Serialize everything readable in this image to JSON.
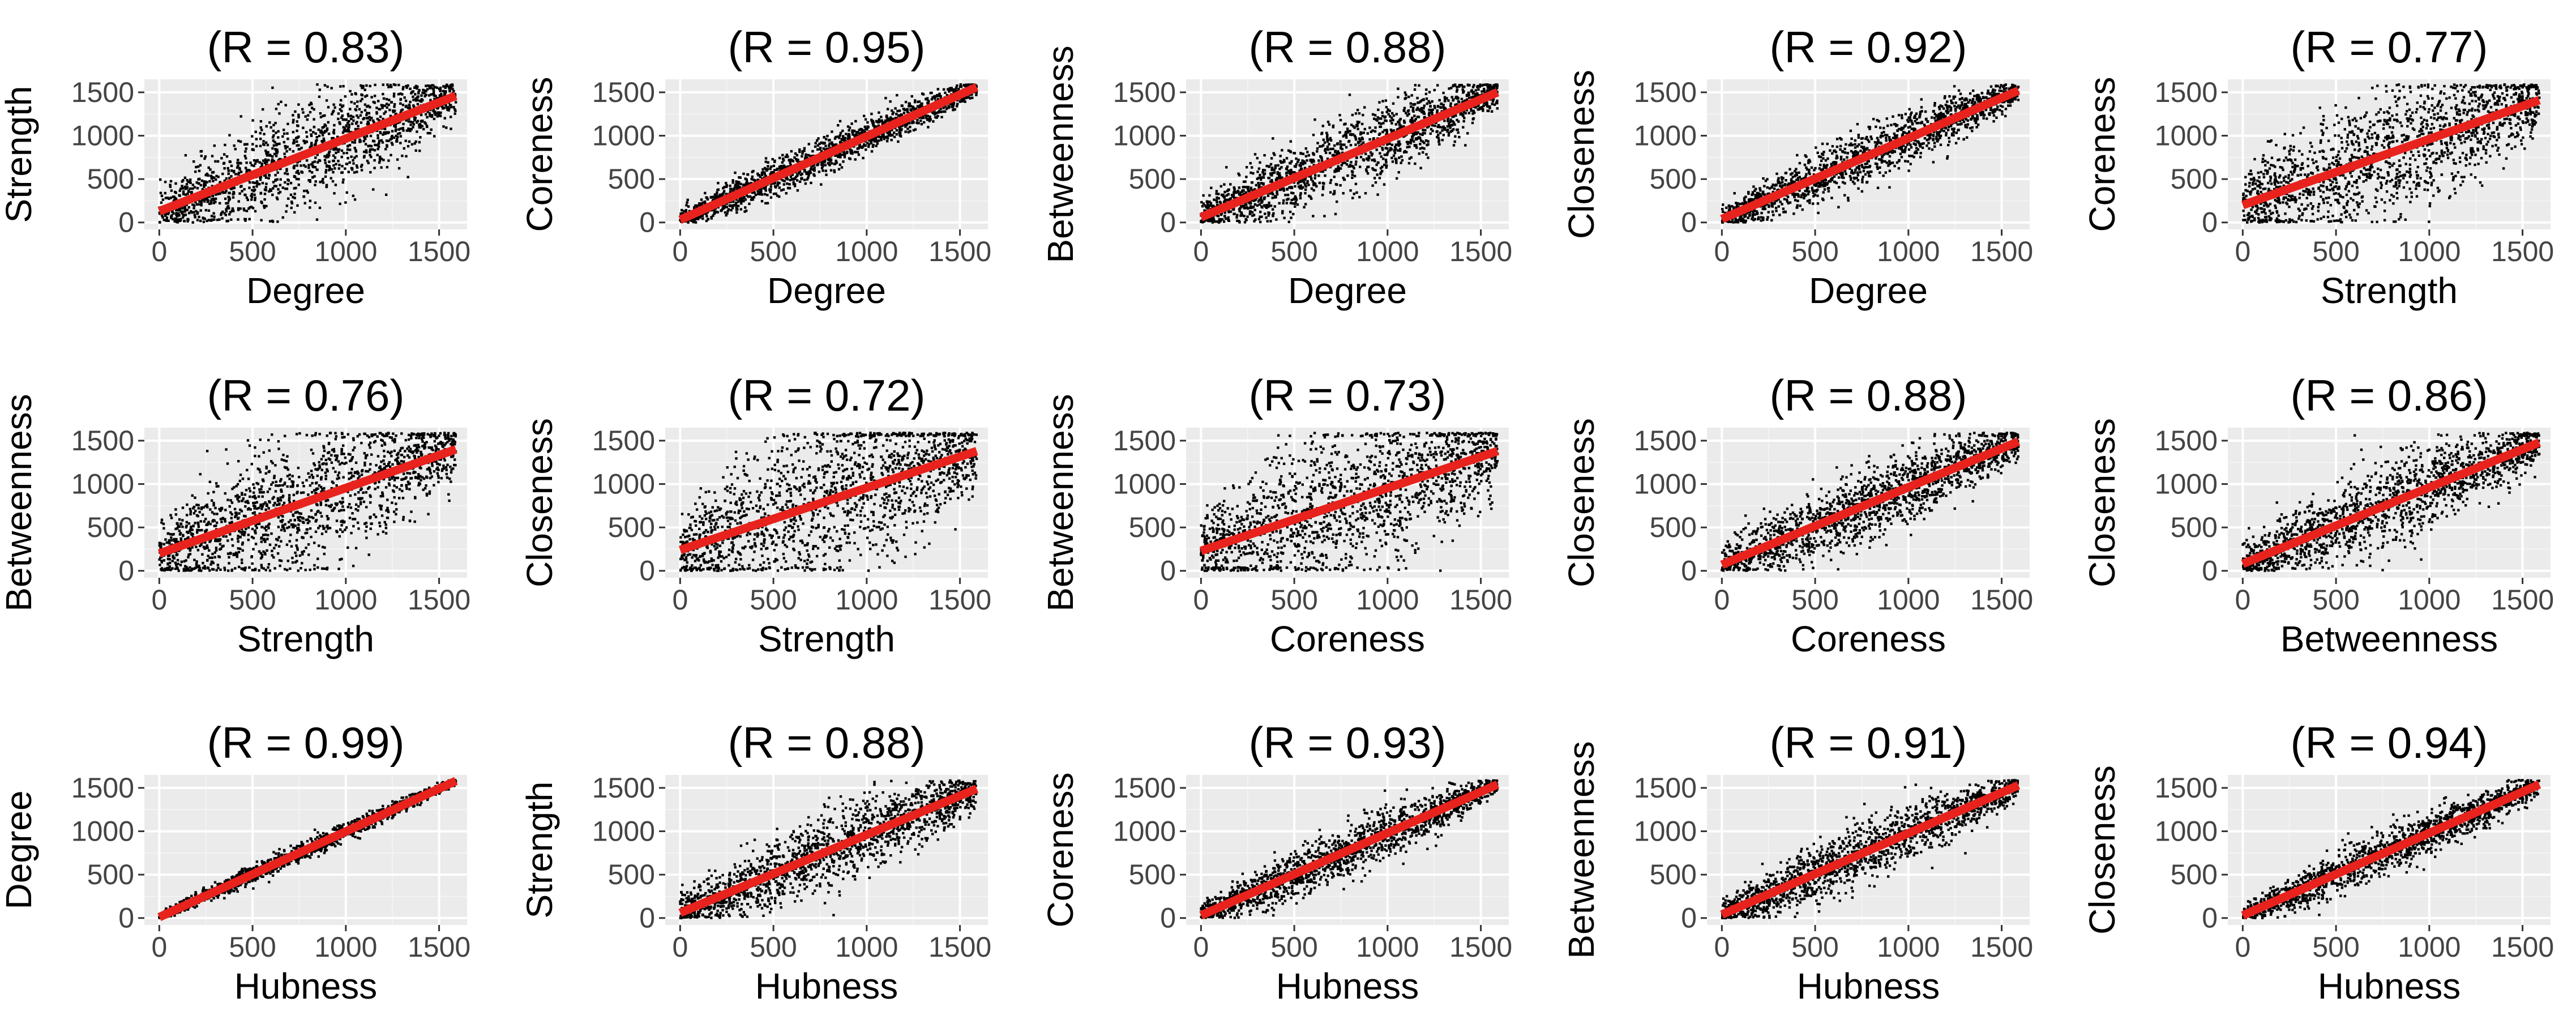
{
  "chart_data": [
    {
      "type": "scatter",
      "title": "(R = 0.83)",
      "xlabel": "Degree",
      "ylabel": "Strength",
      "r": 0.83,
      "xlim": [
        -80,
        1650
      ],
      "ylim": [
        -80,
        1650
      ],
      "xticks": [
        0,
        500,
        1000,
        1500
      ],
      "yticks": [
        0,
        500,
        1000,
        1500
      ],
      "fit": {
        "x": [
          0,
          1590
        ],
        "y": [
          130,
          1460
        ]
      }
    },
    {
      "type": "scatter",
      "title": "(R = 0.95)",
      "xlabel": "Degree",
      "ylabel": "Coreness",
      "r": 0.95,
      "xlim": [
        -80,
        1650
      ],
      "ylim": [
        -80,
        1650
      ],
      "xticks": [
        0,
        500,
        1000,
        1500
      ],
      "yticks": [
        0,
        500,
        1000,
        1500
      ],
      "fit": {
        "x": [
          0,
          1590
        ],
        "y": [
          30,
          1560
        ]
      }
    },
    {
      "type": "scatter",
      "title": "(R = 0.88)",
      "xlabel": "Degree",
      "ylabel": "Betweenness",
      "r": 0.88,
      "xlim": [
        -80,
        1650
      ],
      "ylim": [
        -80,
        1650
      ],
      "xticks": [
        0,
        500,
        1000,
        1500
      ],
      "yticks": [
        0,
        500,
        1000,
        1500
      ],
      "fit": {
        "x": [
          0,
          1590
        ],
        "y": [
          60,
          1500
        ]
      }
    },
    {
      "type": "scatter",
      "title": "(R = 0.92)",
      "xlabel": "Degree",
      "ylabel": "Closeness",
      "r": 0.92,
      "xlim": [
        -80,
        1650
      ],
      "ylim": [
        -80,
        1650
      ],
      "xticks": [
        0,
        500,
        1000,
        1500
      ],
      "yticks": [
        0,
        500,
        1000,
        1500
      ],
      "fit": {
        "x": [
          0,
          1590
        ],
        "y": [
          40,
          1520
        ]
      }
    },
    {
      "type": "scatter",
      "title": "(R = 0.77)",
      "xlabel": "Strength",
      "ylabel": "Coreness",
      "r": 0.77,
      "xlim": [
        -80,
        1650
      ],
      "ylim": [
        -80,
        1650
      ],
      "xticks": [
        0,
        500,
        1000,
        1500
      ],
      "yticks": [
        0,
        500,
        1000,
        1500
      ],
      "fit": {
        "x": [
          0,
          1590
        ],
        "y": [
          200,
          1410
        ]
      }
    },
    {
      "type": "scatter",
      "title": "(R = 0.76)",
      "xlabel": "Strength",
      "ylabel": "Betweenness",
      "r": 0.76,
      "xlim": [
        -80,
        1650
      ],
      "ylim": [
        -80,
        1650
      ],
      "xticks": [
        0,
        500,
        1000,
        1500
      ],
      "yticks": [
        0,
        500,
        1000,
        1500
      ],
      "fit": {
        "x": [
          0,
          1590
        ],
        "y": [
          200,
          1400
        ]
      }
    },
    {
      "type": "scatter",
      "title": "(R = 0.72)",
      "xlabel": "Strength",
      "ylabel": "Closeness",
      "r": 0.72,
      "xlim": [
        -80,
        1650
      ],
      "ylim": [
        -80,
        1650
      ],
      "xticks": [
        0,
        500,
        1000,
        1500
      ],
      "yticks": [
        0,
        500,
        1000,
        1500
      ],
      "fit": {
        "x": [
          0,
          1590
        ],
        "y": [
          240,
          1380
        ]
      }
    },
    {
      "type": "scatter",
      "title": "(R = 0.73)",
      "xlabel": "Coreness",
      "ylabel": "Betweenness",
      "r": 0.73,
      "xlim": [
        -80,
        1650
      ],
      "ylim": [
        -80,
        1650
      ],
      "xticks": [
        0,
        500,
        1000,
        1500
      ],
      "yticks": [
        0,
        500,
        1000,
        1500
      ],
      "fit": {
        "x": [
          0,
          1590
        ],
        "y": [
          230,
          1380
        ]
      }
    },
    {
      "type": "scatter",
      "title": "(R = 0.88)",
      "xlabel": "Coreness",
      "ylabel": "Closeness",
      "r": 0.88,
      "xlim": [
        -80,
        1650
      ],
      "ylim": [
        -80,
        1650
      ],
      "xticks": [
        0,
        500,
        1000,
        1500
      ],
      "yticks": [
        0,
        500,
        1000,
        1500
      ],
      "fit": {
        "x": [
          0,
          1590
        ],
        "y": [
          70,
          1490
        ]
      }
    },
    {
      "type": "scatter",
      "title": "(R = 0.86)",
      "xlabel": "Betweenness",
      "ylabel": "Closeness",
      "r": 0.86,
      "xlim": [
        -80,
        1650
      ],
      "ylim": [
        -80,
        1650
      ],
      "xticks": [
        0,
        500,
        1000,
        1500
      ],
      "yticks": [
        0,
        500,
        1000,
        1500
      ],
      "fit": {
        "x": [
          0,
          1590
        ],
        "y": [
          80,
          1480
        ]
      }
    },
    {
      "type": "scatter",
      "title": "(R = 0.99)",
      "xlabel": "Hubness",
      "ylabel": "Degree",
      "r": 0.99,
      "xlim": [
        -80,
        1650
      ],
      "ylim": [
        -80,
        1650
      ],
      "xticks": [
        0,
        500,
        1000,
        1500
      ],
      "yticks": [
        0,
        500,
        1000,
        1500
      ],
      "fit": {
        "x": [
          0,
          1590
        ],
        "y": [
          10,
          1580
        ]
      }
    },
    {
      "type": "scatter",
      "title": "(R = 0.88)",
      "xlabel": "Hubness",
      "ylabel": "Strength",
      "r": 0.88,
      "xlim": [
        -80,
        1650
      ],
      "ylim": [
        -80,
        1650
      ],
      "xticks": [
        0,
        500,
        1000,
        1500
      ],
      "yticks": [
        0,
        500,
        1000,
        1500
      ],
      "fit": {
        "x": [
          0,
          1590
        ],
        "y": [
          60,
          1490
        ]
      }
    },
    {
      "type": "scatter",
      "title": "(R = 0.93)",
      "xlabel": "Hubness",
      "ylabel": "Coreness",
      "r": 0.93,
      "xlim": [
        -80,
        1650
      ],
      "ylim": [
        -80,
        1650
      ],
      "xticks": [
        0,
        500,
        1000,
        1500
      ],
      "yticks": [
        0,
        500,
        1000,
        1500
      ],
      "fit": {
        "x": [
          0,
          1590
        ],
        "y": [
          30,
          1540
        ]
      }
    },
    {
      "type": "scatter",
      "title": "(R = 0.91)",
      "xlabel": "Hubness",
      "ylabel": "Betweenness",
      "r": 0.91,
      "xlim": [
        -80,
        1650
      ],
      "ylim": [
        -80,
        1650
      ],
      "xticks": [
        0,
        500,
        1000,
        1500
      ],
      "yticks": [
        0,
        500,
        1000,
        1500
      ],
      "fit": {
        "x": [
          0,
          1590
        ],
        "y": [
          40,
          1530
        ]
      }
    },
    {
      "type": "scatter",
      "title": "(R = 0.94)",
      "xlabel": "Hubness",
      "ylabel": "Closeness",
      "r": 0.94,
      "xlim": [
        -80,
        1650
      ],
      "ylim": [
        -80,
        1650
      ],
      "xticks": [
        0,
        500,
        1000,
        1500
      ],
      "yticks": [
        0,
        500,
        1000,
        1500
      ],
      "fit": {
        "x": [
          0,
          1590
        ],
        "y": [
          30,
          1540
        ]
      }
    }
  ],
  "colors": {
    "panel_bg": "#ebebeb",
    "grid": "#ffffff",
    "points": "#000000",
    "fit_line": "#e8221c",
    "tick_text": "#444444"
  },
  "points_per_panel": 1600
}
